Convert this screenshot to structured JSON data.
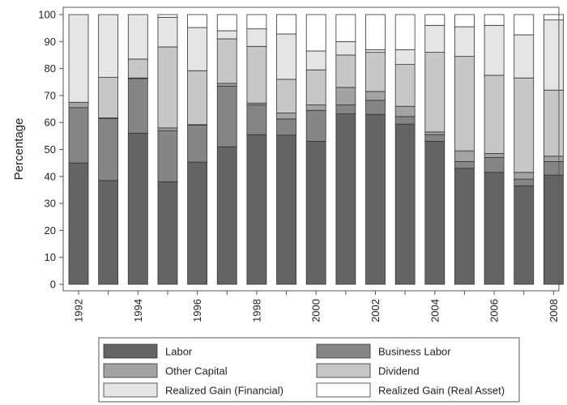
{
  "chart_data": {
    "type": "bar",
    "stacked": true,
    "ylabel": "Percentage",
    "xlabel": "",
    "ylim": [
      0,
      100
    ],
    "yticks": [
      0,
      10,
      20,
      30,
      40,
      50,
      60,
      70,
      80,
      90,
      100
    ],
    "grid": false,
    "legend_position": "bottom",
    "categories": [
      "1992",
      "1993",
      "1994",
      "1995",
      "1996",
      "1997",
      "1998",
      "1999",
      "2000",
      "2001",
      "2002",
      "2003",
      "2004",
      "2005",
      "2006",
      "2007",
      "2008"
    ],
    "x_tick_labels": [
      "1992",
      "",
      "1994",
      "",
      "1996",
      "",
      "1998",
      "",
      "2000",
      "",
      "2002",
      "",
      "2004",
      "",
      "2006",
      "",
      "2008"
    ],
    "series": [
      {
        "name": "Labor",
        "color": "#646464",
        "values": [
          45,
          38.5,
          56,
          38,
          45.3,
          51,
          55.5,
          55.3,
          53,
          63.2,
          63,
          59.4,
          53,
          43,
          41.5,
          36.5,
          40.5
        ]
      },
      {
        "name": "Business Labor",
        "color": "#858585",
        "values": [
          20.5,
          23,
          20.3,
          19,
          13.7,
          22.5,
          11,
          6,
          11.5,
          3.3,
          5.2,
          2.8,
          2.5,
          2.5,
          5.5,
          2.5,
          5
        ]
      },
      {
        "name": "Other Capital",
        "color": "#a3a3a3",
        "values": [
          2,
          0.2,
          0.2,
          1,
          0.2,
          1,
          0.7,
          2.2,
          2,
          6.5,
          3.3,
          3.8,
          1,
          4,
          1.5,
          2.5,
          2
        ]
      },
      {
        "name": "Dividend",
        "color": "#c7c7c7",
        "values": [
          0,
          15,
          7,
          30,
          20,
          16.5,
          21,
          12.5,
          13,
          12,
          14.5,
          15.5,
          29.5,
          35,
          29,
          35,
          24.5
        ]
      },
      {
        "name": "Realized Gain (Financial)",
        "color": "#e5e5e5",
        "values": [
          32.5,
          23.3,
          16.5,
          11,
          16,
          3,
          6.5,
          16.8,
          7,
          5,
          1,
          5.5,
          10,
          11,
          18.5,
          16,
          26
        ]
      },
      {
        "name": "Realized Gain (Real Asset)",
        "color": "#ffffff",
        "values": [
          0,
          0,
          0,
          1,
          4.8,
          6,
          5.3,
          7.2,
          13.5,
          10,
          13,
          13,
          4,
          4.5,
          4,
          7.5,
          2
        ]
      }
    ]
  }
}
